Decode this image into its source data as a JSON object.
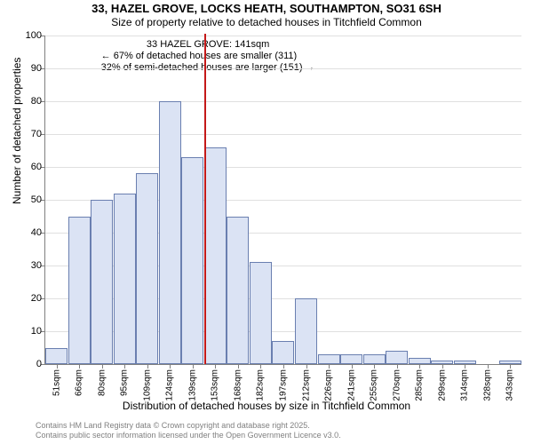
{
  "title_main": "33, HAZEL GROVE, LOCKS HEATH, SOUTHAMPTON, SO31 6SH",
  "title_sub": "Size of property relative to detached houses in Titchfield Common",
  "y_axis_label": "Number of detached properties",
  "x_axis_label": "Distribution of detached houses by size in Titchfield Common",
  "footer_line1": "Contains HM Land Registry data © Crown copyright and database right 2025.",
  "footer_line2": "Contains public sector information licensed under the Open Government Licence v3.0.",
  "annot_hdr": "33 HAZEL GROVE: 141sqm",
  "annot_l1": "← 67% of detached houses are smaller (311)",
  "annot_l2": "32% of semi-detached houses are larger (151) →",
  "chart": {
    "type": "bar-histogram",
    "bar_fill": "#dbe3f4",
    "bar_stroke": "#6a7fb0",
    "grid_color": "#e0e0e0",
    "axis_color": "#808080",
    "ref_color": "#c41919",
    "y_min": 0,
    "y_max": 100,
    "y_tick_step": 10,
    "x_categories": [
      "51sqm",
      "66sqm",
      "80sqm",
      "95sqm",
      "109sqm",
      "124sqm",
      "139sqm",
      "153sqm",
      "168sqm",
      "182sqm",
      "197sqm",
      "212sqm",
      "226sqm",
      "241sqm",
      "255sqm",
      "270sqm",
      "285sqm",
      "299sqm",
      "314sqm",
      "328sqm",
      "343sqm"
    ],
    "values": [
      5,
      45,
      50,
      52,
      58,
      80,
      63,
      66,
      45,
      31,
      7,
      20,
      3,
      3,
      3,
      4,
      2,
      1,
      1,
      0,
      1
    ],
    "ref_line_after_index": 6
  }
}
